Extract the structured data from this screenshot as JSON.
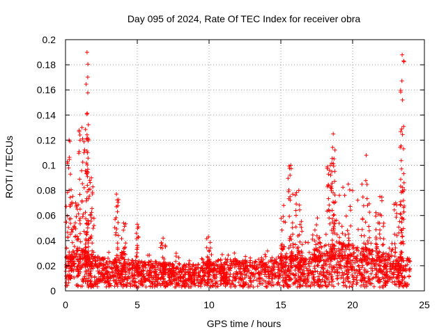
{
  "chart_data": {
    "type": "scatter",
    "title": "Day 095 of 2024, Rate Of TEC Index for receiver obra",
    "xlabel": "GPS time / hours",
    "ylabel": "ROTI / TECUs",
    "xlim": [
      0,
      25
    ],
    "ylim": [
      0,
      0.2
    ],
    "xticks": [
      "0",
      "5",
      "10",
      "15",
      "20",
      "25"
    ],
    "yticks": [
      "0",
      "0.02",
      "0.04",
      "0.06",
      "0.08",
      "0.1",
      "0.12",
      "0.14",
      "0.16",
      "0.18",
      "0.2"
    ],
    "grid": true,
    "marker": "+",
    "color": "#ff0000",
    "x_extent": [
      0,
      24
    ],
    "baseline": [
      [
        0,
        0.018
      ],
      [
        1,
        0.022
      ],
      [
        2,
        0.018
      ],
      [
        3,
        0.016
      ],
      [
        4,
        0.016
      ],
      [
        5,
        0.015
      ],
      [
        6,
        0.015
      ],
      [
        7,
        0.014
      ],
      [
        8,
        0.013
      ],
      [
        9,
        0.013
      ],
      [
        10,
        0.015
      ],
      [
        11,
        0.016
      ],
      [
        12,
        0.016
      ],
      [
        13,
        0.016
      ],
      [
        14,
        0.016
      ],
      [
        15,
        0.018
      ],
      [
        16,
        0.018
      ],
      [
        17,
        0.02
      ],
      [
        18,
        0.024
      ],
      [
        19,
        0.026
      ],
      [
        20,
        0.024
      ],
      [
        21,
        0.022
      ],
      [
        22,
        0.02
      ],
      [
        23,
        0.018
      ],
      [
        24,
        0.016
      ]
    ],
    "bursts": [
      {
        "x": [
          0.0,
          0.5
        ],
        "peak": 0.12
      },
      {
        "x": [
          0.5,
          0.9
        ],
        "peak": 0.07
      },
      {
        "x": [
          0.9,
          1.4
        ],
        "peak": 0.13
      },
      {
        "x": [
          1.4,
          1.6
        ],
        "peak": 0.19
      },
      {
        "x": [
          1.6,
          2.0
        ],
        "peak": 0.09
      },
      {
        "x": [
          3.4,
          3.7
        ],
        "peak": 0.077
      },
      {
        "x": [
          3.9,
          4.2
        ],
        "peak": 0.054
      },
      {
        "x": [
          4.9,
          5.1
        ],
        "peak": 0.053
      },
      {
        "x": [
          6.6,
          7.0
        ],
        "peak": 0.042
      },
      {
        "x": [
          9.8,
          10.1
        ],
        "peak": 0.043
      },
      {
        "x": [
          15.0,
          15.4
        ],
        "peak": 0.068
      },
      {
        "x": [
          15.5,
          15.9
        ],
        "peak": 0.1
      },
      {
        "x": [
          16.0,
          16.5
        ],
        "peak": 0.08
      },
      {
        "x": [
          17.3,
          17.8
        ],
        "peak": 0.058
      },
      {
        "x": [
          18.2,
          18.7
        ],
        "peak": 0.1
      },
      {
        "x": [
          18.5,
          18.8
        ],
        "peak": 0.125
      },
      {
        "x": [
          19.0,
          20.4
        ],
        "peak": 0.085
      },
      {
        "x": [
          20.6,
          21.3
        ],
        "peak": 0.108
      },
      {
        "x": [
          21.6,
          22.2
        ],
        "peak": 0.075
      },
      {
        "x": [
          22.6,
          23.4
        ],
        "peak": 0.07
      },
      {
        "x": [
          23.3,
          23.6
        ],
        "peak": 0.188
      }
    ]
  }
}
